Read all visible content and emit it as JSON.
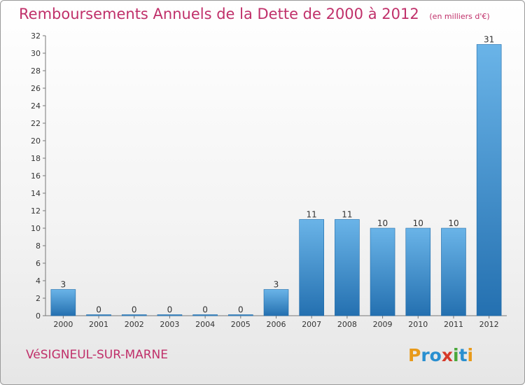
{
  "header": {
    "title": "Remboursements Annuels de la Dette de 2000 à 2012",
    "unit": "(en milliers d'€)"
  },
  "footer": {
    "city": "VéSIGNEUL-SUR-MARNE",
    "logo_text": "Proxiti"
  },
  "colors": {
    "title": "#c0306a",
    "bar_top": "#6ab4e8",
    "bar_bottom": "#2470b0"
  },
  "chart_data": {
    "type": "bar",
    "categories": [
      "2000",
      "2001",
      "2002",
      "2003",
      "2004",
      "2005",
      "2006",
      "2007",
      "2008",
      "2009",
      "2010",
      "2011",
      "2012"
    ],
    "values": [
      3,
      0,
      0,
      0,
      0,
      0,
      3,
      11,
      11,
      10,
      10,
      10,
      31
    ],
    "title": "Remboursements Annuels de la Dette de 2000 à 2012",
    "xlabel": "",
    "ylabel": "",
    "ylim": [
      0,
      32
    ],
    "yticks": [
      0,
      2,
      4,
      6,
      8,
      10,
      12,
      14,
      16,
      18,
      20,
      22,
      24,
      26,
      28,
      30,
      32
    ],
    "grid": false,
    "data_labels": true
  }
}
